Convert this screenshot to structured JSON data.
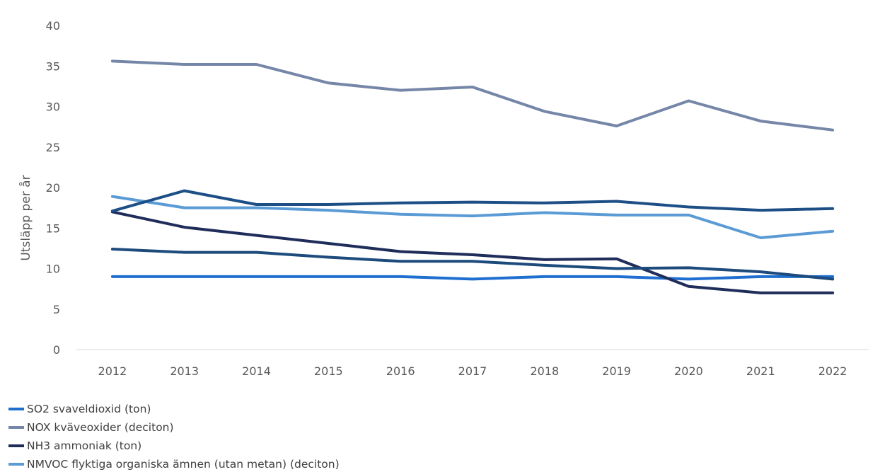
{
  "chart_data": {
    "type": "line",
    "ylabel": "Utsläpp per år",
    "xlabel": "",
    "ylim": [
      0,
      40
    ],
    "yticks": [
      0,
      5,
      10,
      15,
      20,
      25,
      30,
      35,
      40
    ],
    "grid": false,
    "legend_position": "bottom",
    "categories": [
      "2012",
      "2013",
      "2014",
      "2015",
      "2016",
      "2017",
      "2018",
      "2019",
      "2020",
      "2021",
      "2022"
    ],
    "series": [
      {
        "name": "SO2 svaveldioxid (ton)",
        "color": "#1f6fd0",
        "values": [
          9.0,
          9.0,
          9.0,
          9.0,
          9.0,
          8.7,
          9.0,
          9.0,
          8.7,
          9.0,
          9.0
        ]
      },
      {
        "name": "NOX kväveoxider (deciton)",
        "color": "#7586a8",
        "values": [
          35.6,
          35.2,
          35.2,
          32.9,
          32.0,
          32.4,
          29.4,
          27.6,
          30.7,
          28.2,
          27.1
        ]
      },
      {
        "name": "NH3 ammoniak (ton)",
        "color": "#1f2d5a",
        "values": [
          17.0,
          15.1,
          14.1,
          13.1,
          12.1,
          11.7,
          11.1,
          11.2,
          7.8,
          7.0,
          7.0
        ]
      },
      {
        "name": "NMVOC flyktiga organiska ämnen (utan metan) (deciton)",
        "color": "#5b9bd5",
        "values": [
          18.9,
          17.5,
          17.5,
          17.2,
          16.7,
          16.5,
          16.9,
          16.6,
          16.6,
          13.8,
          14.6
        ]
      },
      {
        "name": "",
        "color": "#1d4f86",
        "values": [
          17.1,
          19.6,
          17.9,
          17.9,
          18.1,
          18.2,
          18.1,
          18.3,
          17.6,
          17.2,
          17.4
        ]
      },
      {
        "name": "",
        "color": "#1d4b7c",
        "values": [
          12.4,
          12.0,
          12.0,
          11.4,
          10.9,
          10.9,
          10.4,
          10.0,
          10.1,
          9.6,
          8.7
        ]
      }
    ]
  }
}
